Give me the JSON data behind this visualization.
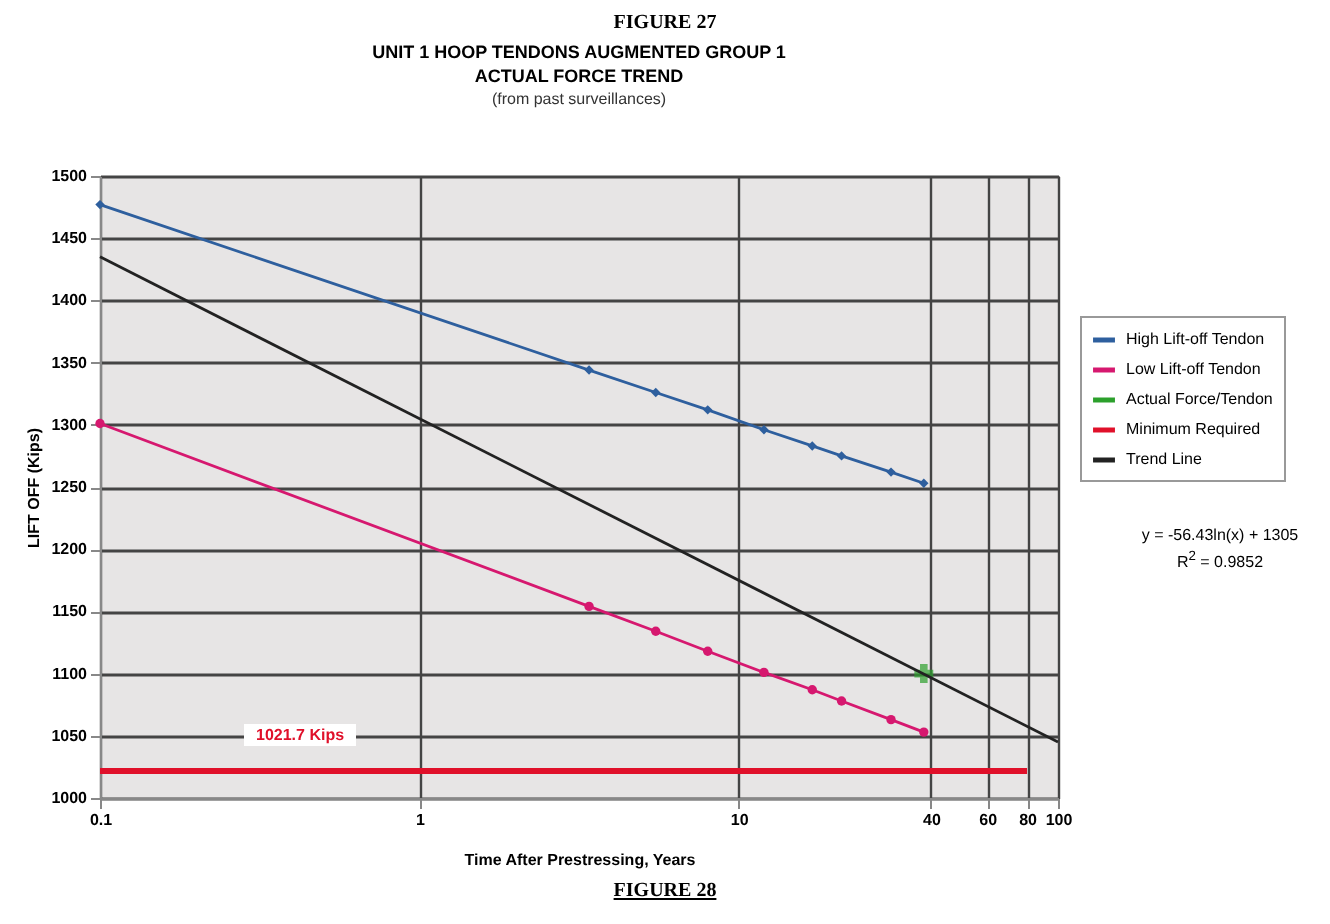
{
  "chart_data": {
    "type": "line",
    "title": "UNIT 1 HOOP TENDONS AUGMENTED GROUP 1\nACTUAL FORCE TREND",
    "subtitle": "(from past surveillances)",
    "xlabel": "Time After Prestressing, Years",
    "ylabel": "LIFT OFF (Kips)",
    "series": [
      {
        "name": "High Lift-off Tendon",
        "color": "#2e5f9e",
        "marker": "diamond",
        "x": [
          0.1,
          3.4,
          5.5,
          8,
          12,
          17,
          21,
          30,
          38
        ],
        "values": [
          1477,
          1344,
          1326,
          1312,
          1296,
          1283,
          1275,
          1262,
          1253
        ]
      },
      {
        "name": "Low Lift-off Tendon",
        "color": "#d6186f",
        "marker": "circle",
        "x": [
          0.1,
          3.4,
          5.5,
          8,
          12,
          17,
          21,
          30,
          38
        ],
        "values": [
          1301,
          1154,
          1134,
          1118,
          1101,
          1087,
          1078,
          1063,
          1053
        ]
      },
      {
        "name": "Actual Force/Tendon",
        "color": "#2ca02c",
        "type": "scatter",
        "marker": "cross",
        "x": [
          38
        ],
        "values": [
          1100
        ]
      },
      {
        "name": "Minimum Required",
        "color": "#e0102a",
        "x": [
          0.1,
          80
        ],
        "values": [
          1021.7,
          1021.7
        ]
      },
      {
        "name": "Trend Line",
        "color": "#222222",
        "x": [
          0.1,
          100
        ],
        "values": [
          1435,
          1045
        ]
      }
    ],
    "annotations": [
      "FIGURE 27",
      "1021.7 Kips",
      "y = -56.43ln(x) + 1305",
      "R$^{2}$ = 0.9852",
      "FIGURE 28"
    ],
    "xlim": [
      0.1,
      100
    ],
    "ylim": [
      1000,
      1500
    ],
    "log": "x",
    "xticks": [
      0.1,
      1,
      10,
      40,
      60,
      80,
      100
    ],
    "yticks": [
      1000,
      1050,
      1100,
      1150,
      1200,
      1250,
      1300,
      1350,
      1400,
      1450,
      1500
    ],
    "grid": true,
    "legend": "right",
    "line_style": "solid"
  }
}
